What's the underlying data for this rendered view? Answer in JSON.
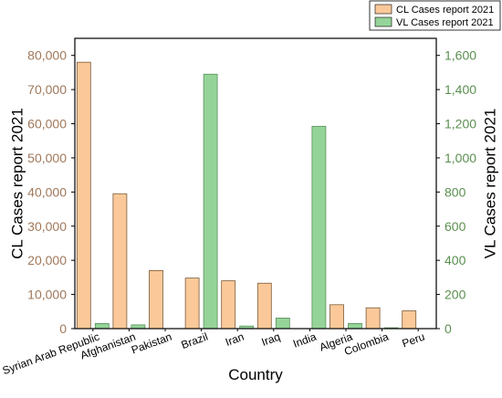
{
  "chart_data": {
    "type": "bar",
    "categories": [
      "Syrian Arab Republic",
      "Afghanistan",
      "Pakistan",
      "Brazil",
      "Iran",
      "Iraq",
      "India",
      "Algeria",
      "Colombia",
      "Peru"
    ],
    "series": [
      {
        "name": "CL Cases report 2021",
        "axis": "left",
        "color": "#fbc999",
        "values": [
          78000,
          39500,
          17000,
          14800,
          14000,
          13300,
          0,
          7000,
          6100,
          5200
        ]
      },
      {
        "name": "VL Cases report 2021",
        "axis": "right",
        "color": "#95d498",
        "values": [
          30,
          22,
          0,
          1490,
          15,
          62,
          1185,
          30,
          5,
          0
        ]
      }
    ],
    "xlabel": "Country",
    "ylabel_left": "CL Cases report 2021",
    "ylabel_right": "VL Cases report 2021",
    "ylim_left": [
      0,
      85000
    ],
    "ylim_right": [
      0,
      1700
    ],
    "yticks_left": [
      "0",
      "10,000",
      "20,000",
      "30,000",
      "40,000",
      "50,000",
      "60,000",
      "70,000",
      "80,000"
    ],
    "yticks_right": [
      "0",
      "200",
      "400",
      "600",
      "800",
      "1,000",
      "1,200",
      "1,400",
      "1,600"
    ],
    "grid": false,
    "legend": "top-right",
    "left_axis_color": "#a0785a",
    "right_axis_color": "#5a8f4f"
  }
}
